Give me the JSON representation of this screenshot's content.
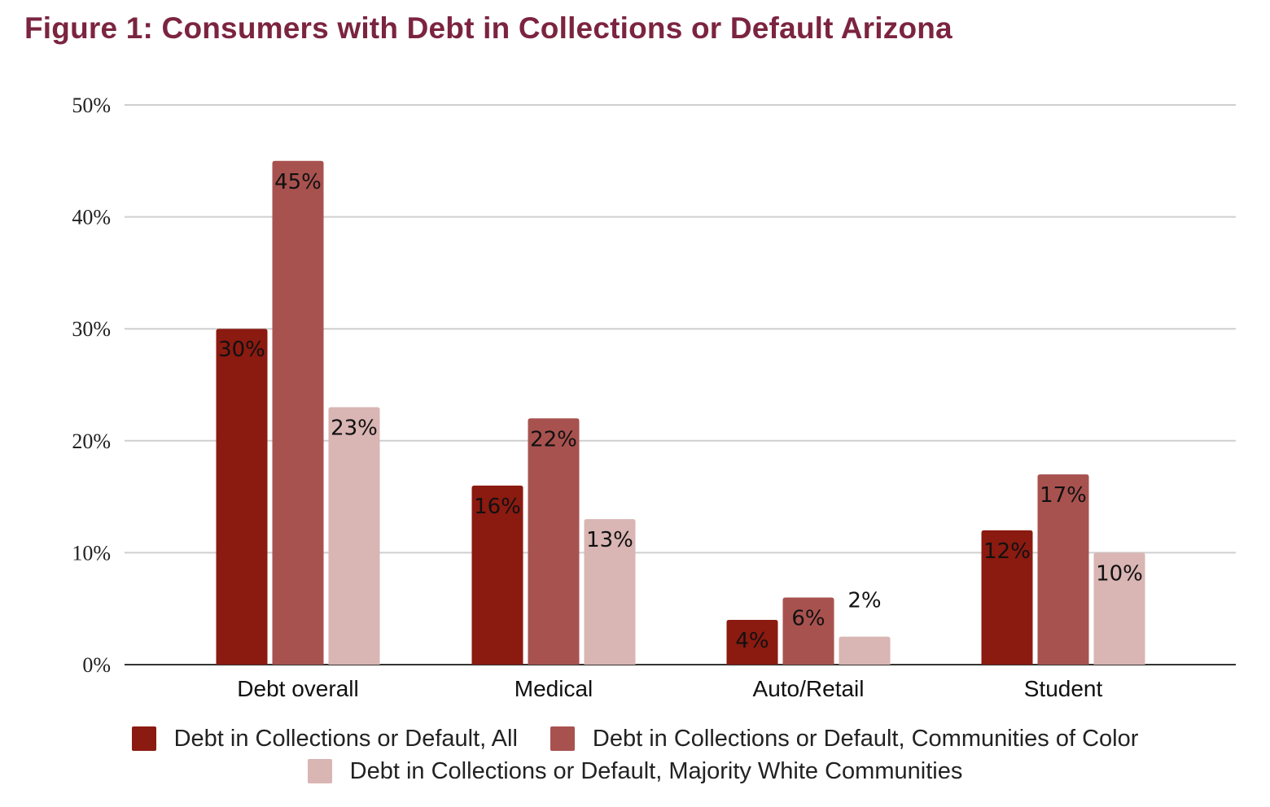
{
  "chart_data": {
    "type": "bar",
    "title": "Figure 1: Consumers with Debt in Collections or Default Arizona",
    "xlabel": "",
    "ylabel": "",
    "categories": [
      "Debt overall",
      "Medical",
      "Auto/Retail",
      "Student"
    ],
    "series": [
      {
        "name": "Debt in Collections or Default, All",
        "color": "#8b1a10",
        "values": [
          30,
          16,
          4,
          12
        ],
        "labels": [
          "30%",
          "16%",
          "4%",
          "12%"
        ]
      },
      {
        "name": "Debt in Collections or Default, Communities of Color",
        "color": "#a8524f",
        "values": [
          45,
          22,
          6,
          17
        ],
        "labels": [
          "45%",
          "22%",
          "6%",
          "17%"
        ]
      },
      {
        "name": "Debt in Collections or Default, Majority White Communities",
        "color": "#d9b5b3",
        "values": [
          23,
          13,
          2.5,
          10
        ],
        "labels": [
          "23%",
          "13%",
          "2%",
          "10%"
        ]
      }
    ],
    "ylim": [
      0,
      50
    ],
    "yticks": [
      0,
      10,
      20,
      30,
      40,
      50
    ],
    "ytick_labels": [
      "0%",
      "10%",
      "20%",
      "30%",
      "40%",
      "50%"
    ],
    "grid": true,
    "legend": "bottom",
    "title_color": "#7b2440"
  }
}
